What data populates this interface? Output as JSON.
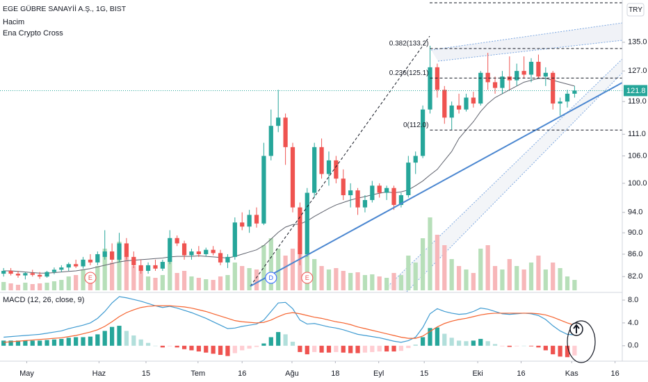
{
  "chart_data": {
    "type": "candlestick",
    "title": "EGE GÜBRE SANAYİİ A.Ş., 1G, BIST",
    "currency": "TRY",
    "log": true,
    "grid": false,
    "up_color": "#26a69a",
    "down_color": "#ef5350",
    "xlim": [
      -0.5,
      85.6
    ],
    "xticks": [
      {
        "value": 3.2,
        "label": "May"
      },
      {
        "value": 13.2,
        "label": "Haz"
      },
      {
        "value": 19.7,
        "label": "15"
      },
      {
        "value": 26.9,
        "label": "Tem"
      },
      {
        "value": 33,
        "label": "16"
      },
      {
        "value": 39.9,
        "label": "Ağu"
      },
      {
        "value": 45.9,
        "label": "18"
      },
      {
        "value": 51.9,
        "label": "Eyl"
      },
      {
        "value": 58.2,
        "label": "15"
      },
      {
        "value": 65.6,
        "label": "Eki"
      },
      {
        "value": 71.6,
        "label": "16"
      },
      {
        "value": 78.6,
        "label": "Kas"
      },
      {
        "value": 84.6,
        "label": "16"
      }
    ],
    "ylim": [
      79.4,
      147.7
    ],
    "yticks": [
      {
        "value": 82,
        "label": "82.0"
      },
      {
        "value": 86,
        "label": "86.0"
      },
      {
        "value": 90,
        "label": "90.0"
      },
      {
        "value": 94,
        "label": "94.0"
      },
      {
        "value": 100,
        "label": "100.0"
      },
      {
        "value": 106,
        "label": "106.0"
      },
      {
        "value": 111,
        "label": "111.0"
      },
      {
        "value": 119,
        "label": "119.0"
      },
      {
        "value": 127,
        "label": "127.0"
      },
      {
        "value": 135,
        "label": "135.0"
      }
    ],
    "last_price": 121.8,
    "open": [
      82.5,
      83,
      82.5,
      82.2,
      82.6,
      82.3,
      82,
      82.8,
      83.2,
      83.6,
      84.2,
      83.8,
      85,
      84.5,
      85.5,
      86.5,
      85,
      88,
      85.5,
      84,
      83,
      84,
      83.4,
      84.6,
      89,
      88,
      85.8,
      86.5,
      86,
      86.8,
      86.2,
      84.5,
      85.5,
      92,
      91.2,
      93.5,
      91.8,
      106,
      113,
      115,
      108,
      95,
      86,
      98,
      108,
      102,
      105,
      101,
      97.5,
      98.5,
      95,
      96.5,
      99.5,
      98,
      99,
      95.5,
      97.5,
      104.5,
      106,
      117,
      128,
      122,
      115,
      118,
      117,
      120,
      118.5,
      126.5,
      124,
      122.5,
      125.5,
      124.5,
      127,
      126,
      129.5,
      125.5,
      126.5,
      118.5,
      119,
      121
    ],
    "high": [
      83.5,
      83.5,
      83,
      82.8,
      83.2,
      82.8,
      83,
      83.6,
      84,
      84.5,
      85,
      85.5,
      86,
      86.5,
      90.5,
      88,
      90,
      89,
      86.5,
      85,
      84.5,
      85,
      85,
      90.5,
      89.5,
      88.5,
      87,
      87.5,
      87.2,
      87.5,
      86.8,
      86,
      93,
      94,
      94.5,
      95,
      109,
      117,
      122,
      116,
      109,
      96,
      99,
      109,
      110,
      107,
      106,
      103,
      100,
      99,
      97.5,
      100.5,
      100,
      99.5,
      99.5,
      98,
      106,
      107,
      118,
      134,
      129,
      123,
      119,
      121,
      121,
      121.5,
      127,
      132,
      125.5,
      127,
      131,
      129,
      131,
      130.5,
      131.5,
      128,
      127,
      120,
      122,
      123
    ],
    "low": [
      82,
      82.2,
      81.8,
      81.5,
      82,
      81.6,
      81.8,
      82.4,
      82.8,
      83,
      83.5,
      83.4,
      84,
      84,
      85,
      84.5,
      84.5,
      85,
      83.5,
      82.5,
      82.5,
      83,
      83,
      84.2,
      87.5,
      85,
      85,
      85.5,
      85.6,
      85.8,
      84,
      83.5,
      85,
      90.5,
      90,
      91,
      91.5,
      105,
      111.5,
      104,
      94,
      84,
      85.5,
      97,
      101,
      99.5,
      100,
      96.5,
      95,
      93.5,
      94,
      96,
      97,
      96.5,
      94.5,
      95,
      97,
      102,
      105.5,
      116,
      120,
      113.5,
      112,
      116,
      116.5,
      117.5,
      118,
      122,
      121,
      121,
      122,
      123,
      125,
      124,
      125,
      123,
      117,
      115.5,
      117.5,
      120
    ],
    "close": [
      83,
      82.5,
      82.2,
      82.6,
      82.3,
      82,
      82.8,
      83.2,
      83.6,
      84.2,
      83.8,
      85,
      84.5,
      86,
      86.5,
      85,
      88,
      85.5,
      84,
      83,
      84,
      83.4,
      84.6,
      89,
      88,
      85.8,
      86.5,
      86,
      86.8,
      86.2,
      84.5,
      85.5,
      92,
      91.2,
      93.5,
      91.8,
      106,
      113,
      115,
      108,
      95,
      86,
      98,
      108,
      102,
      105,
      101,
      97.5,
      98.5,
      95,
      96.5,
      99.5,
      98,
      99,
      95.5,
      97.5,
      104.5,
      106,
      117,
      128,
      122,
      115,
      118,
      117,
      120,
      118.5,
      126.5,
      124,
      122.5,
      125.5,
      124.5,
      127,
      126,
      129.5,
      125.5,
      126.5,
      118.5,
      119,
      121,
      121.8
    ],
    "volume": {
      "name": "Hacim",
      "up_color": "#b7dfb9",
      "down_color": "#f7b7b9",
      "vlim": [
        0,
        12
      ],
      "values": [
        1.2,
        1,
        0.8,
        1.1,
        0.9,
        1,
        1.1,
        1.3,
        1.5,
        2,
        2.2,
        3,
        2.5,
        3.5,
        6,
        4,
        7,
        5,
        3.5,
        3,
        2,
        1.8,
        2.2,
        4.5,
        2.5,
        2.8,
        2,
        1.8,
        1.6,
        1.5,
        2,
        2.2,
        4,
        3.5,
        3.2,
        3,
        6.5,
        7.5,
        6,
        5,
        6,
        7,
        5.5,
        4.5,
        3.5,
        3,
        3.2,
        2.8,
        2.5,
        2.6,
        2.2,
        2.3,
        2,
        1.8,
        2.5,
        2.2,
        5,
        4,
        7.5,
        10.5,
        8,
        6.5,
        4.5,
        3.5,
        3,
        2.5,
        6,
        6.5,
        3.5,
        3,
        4.5,
        3.5,
        3,
        4,
        5,
        3,
        4,
        3.2,
        2,
        1.5
      ]
    },
    "indicator": {
      "name": "Ena Crypto Cross",
      "color": "#5d606b",
      "values": [
        83,
        83,
        82.9,
        82.8,
        82.7,
        82.6,
        82.6,
        82.7,
        82.8,
        82.9,
        83,
        83.2,
        83.4,
        83.7,
        84,
        84.3,
        84.6,
        84.8,
        84.9,
        85,
        85.1,
        85.2,
        85.3,
        85.5,
        85.6,
        85.6,
        85.6,
        85.7,
        85.6,
        85.5,
        85.4,
        85.3,
        85.6,
        86,
        86.4,
        86.8,
        87.6,
        88.8,
        90.1,
        91.1,
        91.6,
        91.7,
        92.3,
        93.2,
        94,
        94.8,
        95.5,
        96,
        96.5,
        96.9,
        97.2,
        97.6,
        97.9,
        98.2,
        98,
        98.2,
        98.6,
        99.5,
        100.5,
        101.8,
        103,
        105,
        107,
        110,
        112,
        114,
        116.5,
        118.5,
        120,
        121,
        122,
        123,
        124,
        124.5,
        125,
        125,
        124.5,
        124,
        123.5,
        123
      ]
    },
    "fib_levels": [
      {
        "value": 133.2,
        "label": "0.382(133.2)"
      },
      {
        "value": 125.1,
        "label": "0.236(125.1)"
      },
      {
        "value": 112.0,
        "label": "0(112.0)"
      }
    ],
    "fib_start": 59,
    "events": [
      {
        "label": "E",
        "index": 12
      },
      {
        "label": "D",
        "index": 37
      },
      {
        "label": "E",
        "index": 42
      }
    ],
    "macd": {
      "name": "MACD (12, 26, close, 9)",
      "ylim": [
        -2.7,
        9.1
      ],
      "yticks": [
        {
          "value": 8,
          "label": "8.0"
        },
        {
          "value": 4,
          "label": "4.0"
        },
        {
          "value": 0,
          "label": "0.0"
        }
      ],
      "macd_color": "#3d9ad1",
      "signal_color": "#f5622d",
      "macd": [
        1.5,
        1.6,
        1.7,
        1.8,
        1.9,
        2,
        2.2,
        2.4,
        2.6,
        3,
        3.3,
        3.6,
        4,
        4.8,
        6,
        7.5,
        8.6,
        8.4,
        8.1,
        7.8,
        7.4,
        7,
        6.7,
        6.9,
        6.6,
        6.2,
        5.8,
        5.3,
        4.8,
        4.2,
        3.6,
        3,
        3.1,
        3.4,
        3.6,
        3.8,
        4.5,
        6,
        7.5,
        7.6,
        6.5,
        4.5,
        3.8,
        3.9,
        3.6,
        3.3,
        3.1,
        2.8,
        2.4,
        2,
        1.8,
        1.6,
        1.4,
        1.1,
        0.8,
        0.6,
        0.9,
        1.5,
        3.2,
        5.6,
        6.5,
        6,
        5.7,
        5.5,
        5.6,
        6,
        6.6,
        6.4,
        6,
        5.6,
        5.5,
        5.6,
        5.7,
        5.6,
        5.3,
        4.6,
        3.5,
        2.6,
        2,
        1.9
      ],
      "signal": [
        0.6,
        0.7,
        0.8,
        0.9,
        1,
        1.1,
        1.2,
        1.3,
        1.4,
        1.6,
        1.8,
        2.1,
        2.4,
        2.8,
        3.4,
        4.2,
        5.1,
        5.8,
        6.3,
        6.7,
        6.9,
        7,
        7,
        7,
        6.9,
        6.8,
        6.6,
        6.3,
        6,
        5.6,
        5.2,
        4.8,
        4.4,
        4.2,
        4.1,
        4,
        4.1,
        4.5,
        5.1,
        5.6,
        5.8,
        5.6,
        5.3,
        5,
        4.8,
        4.5,
        4.2,
        4,
        3.7,
        3.3,
        3,
        2.7,
        2.4,
        2.1,
        1.8,
        1.5,
        1.3,
        1.3,
        1.7,
        2.5,
        3.3,
        3.9,
        4.3,
        4.6,
        4.8,
        5.1,
        5.4,
        5.6,
        5.7,
        5.7,
        5.7,
        5.7,
        5.7,
        5.7,
        5.6,
        5.4,
        5,
        4.5,
        4,
        3.6
      ],
      "histogram": [
        0.9,
        0.9,
        0.9,
        0.9,
        0.9,
        0.9,
        1,
        1.1,
        1.2,
        1.4,
        1.5,
        1.5,
        1.6,
        2,
        2.6,
        3.3,
        3.5,
        2.6,
        1.8,
        1.1,
        0.5,
        0,
        -0.3,
        -0.1,
        -0.3,
        -0.6,
        -0.8,
        -1,
        -1.2,
        -1.4,
        -1.6,
        -1.8,
        -1.3,
        -0.8,
        -0.5,
        -0.2,
        0.4,
        1.5,
        2.4,
        2,
        0.7,
        -1.1,
        -1.5,
        -1.1,
        -1.2,
        -1.2,
        -1.1,
        -1.2,
        -1.3,
        -1.3,
        -1.2,
        -1.1,
        -1,
        -1,
        -1,
        -0.9,
        -0.4,
        0.2,
        1.5,
        3.1,
        3.2,
        2.1,
        1.4,
        0.9,
        0.8,
        0.9,
        1.2,
        0.8,
        0.3,
        -0.1,
        -0.2,
        -0.1,
        0,
        -0.1,
        -0.3,
        -0.8,
        -1.5,
        -1.9,
        -2,
        -1.7
      ]
    }
  }
}
